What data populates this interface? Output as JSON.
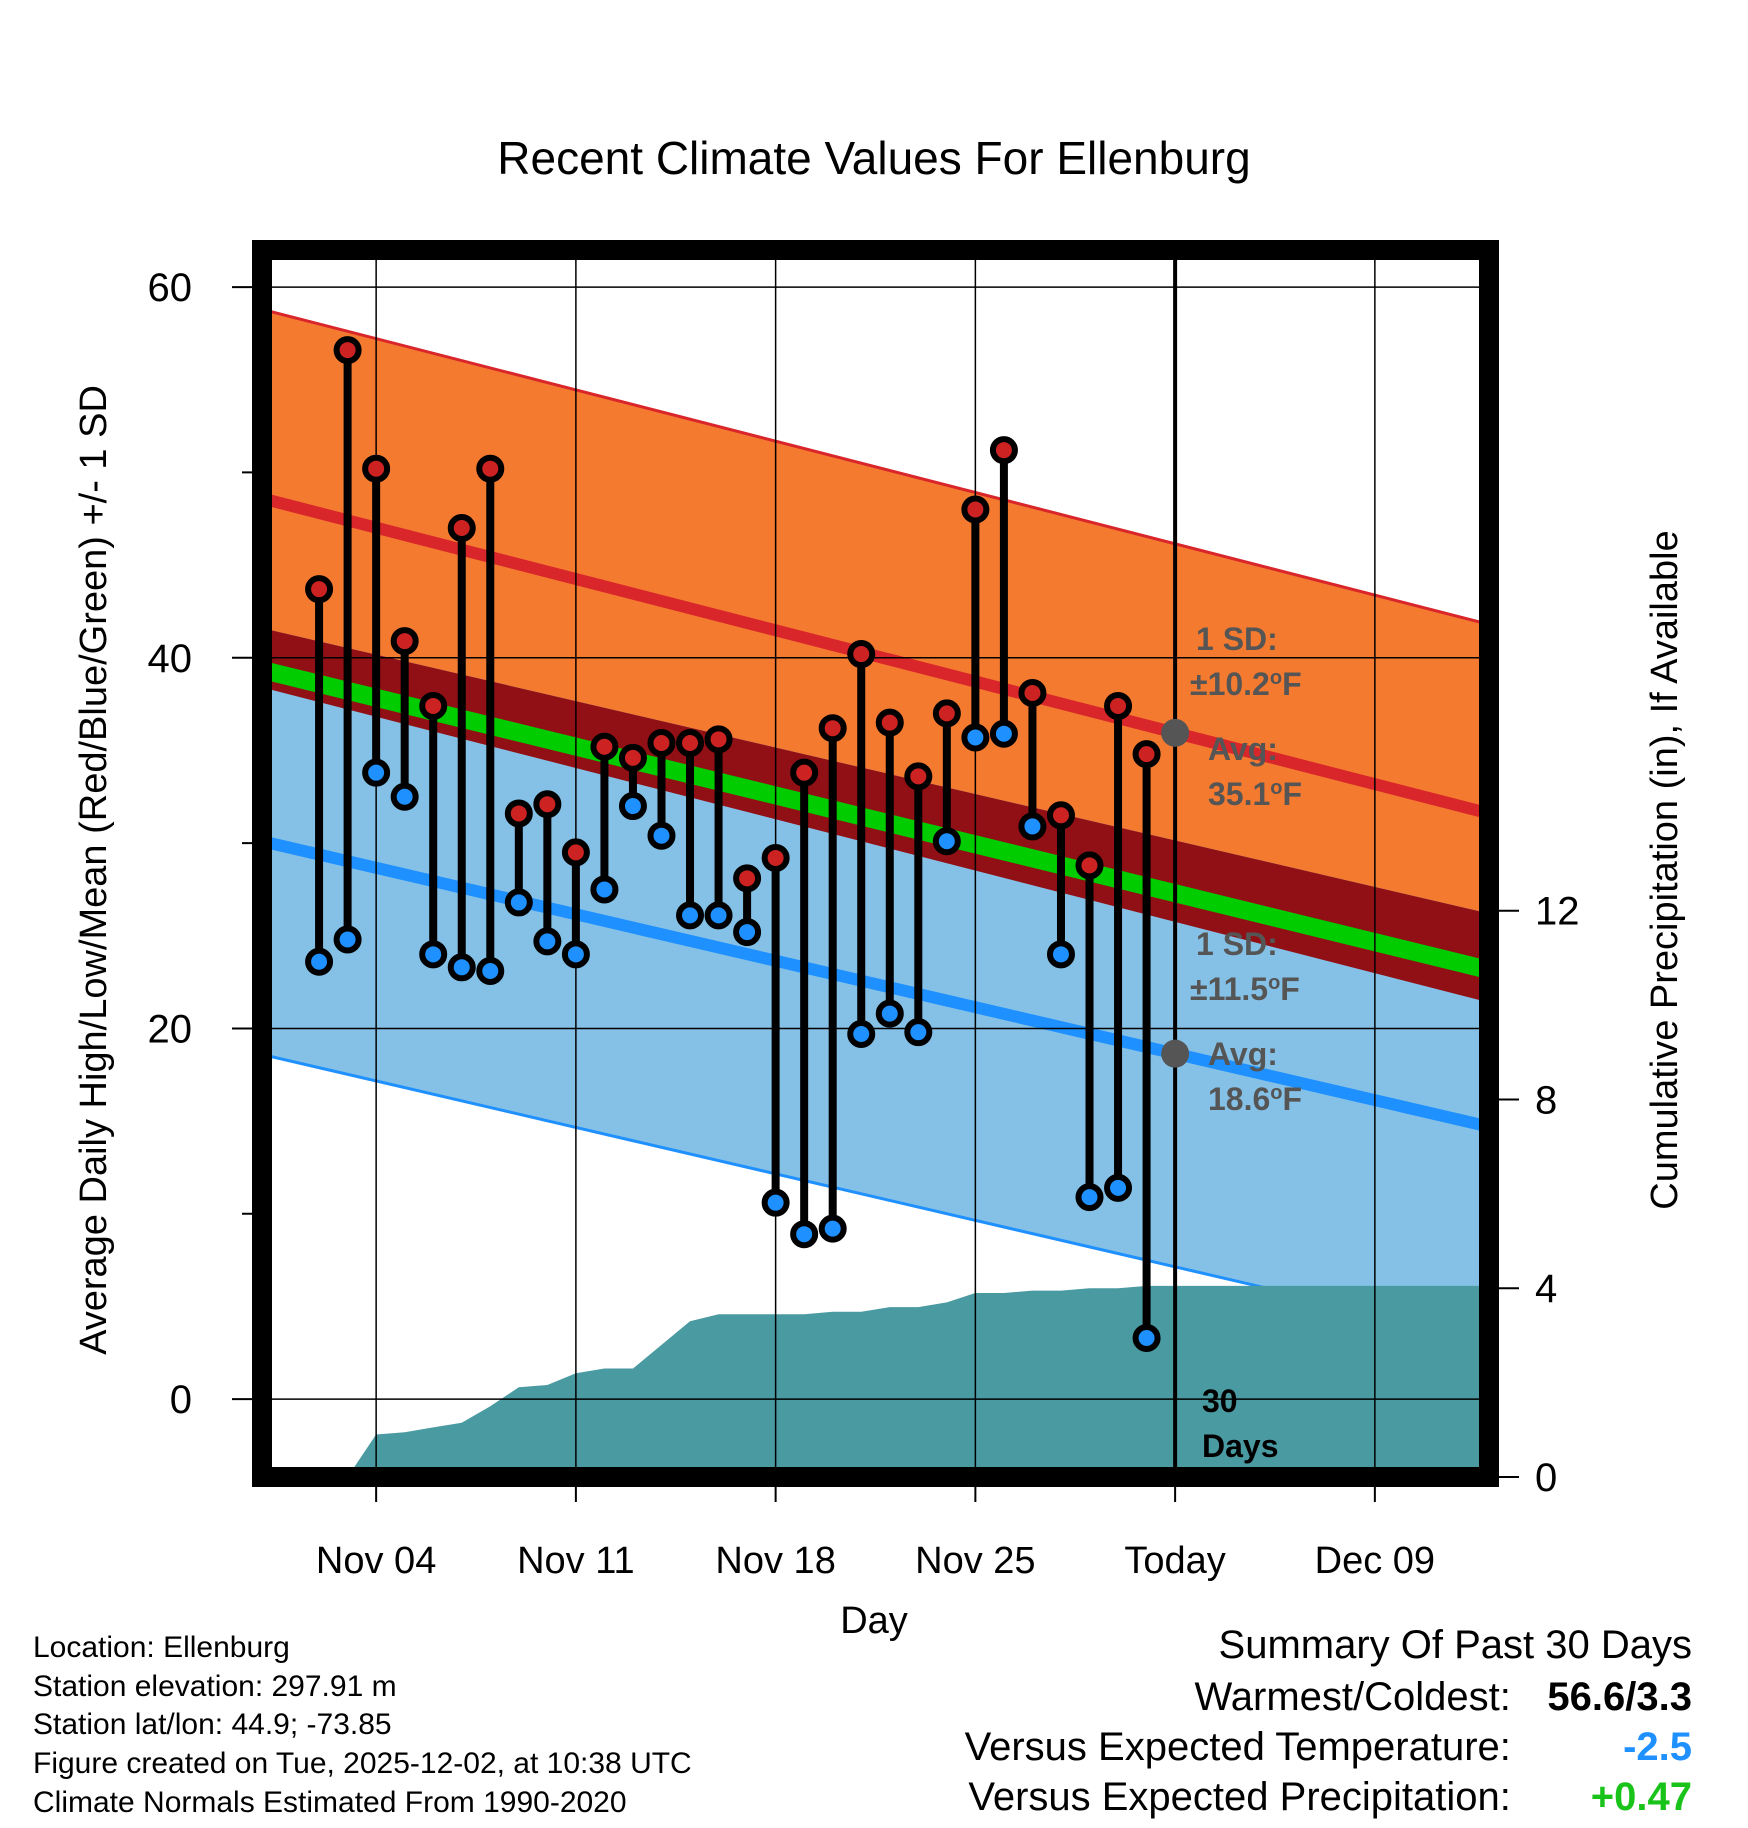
{
  "chart_data": {
    "type": "line",
    "title": "Recent Climate Values For Ellenburg",
    "xlabel": "Day",
    "ylabel": "Average Daily High/Low/Mean (Red/Blue/Green) +/- 1 SD",
    "y2label": "Cumulative Precipitation (in), If Available",
    "xlim": [
      -1,
      42
    ],
    "ylim": [
      -4.2,
      62
    ],
    "y2lim": [
      0,
      26
    ],
    "x_ticks": [
      {
        "day": 3,
        "label": "Nov 04"
      },
      {
        "day": 10,
        "label": "Nov 11"
      },
      {
        "day": 17,
        "label": "Nov 18"
      },
      {
        "day": 24,
        "label": "Nov 25"
      },
      {
        "day": 31,
        "label": "Today"
      },
      {
        "day": 38,
        "label": "Dec 09"
      }
    ],
    "y_ticks": [
      0,
      20,
      40,
      60
    ],
    "y_minor_ticks": [
      10,
      30,
      50
    ],
    "y2_ticks": [
      0,
      4,
      8,
      12
    ],
    "today_day": 31,
    "normals": {
      "x": [
        -1,
        42
      ],
      "high_mean": [
        48.6,
        31.6
      ],
      "high_sd": 10.2,
      "low_mean": [
        30.1,
        14.7
      ],
      "low_sd": 11.5
    },
    "days": [
      1,
      2,
      3,
      4,
      5,
      6,
      7,
      8,
      9,
      10,
      11,
      12,
      13,
      14,
      15,
      16,
      17,
      18,
      19,
      20,
      21,
      22,
      23,
      24,
      25,
      26,
      27,
      28,
      29,
      30
    ],
    "highs": [
      43.7,
      56.6,
      50.2,
      40.9,
      37.4,
      47.0,
      50.2,
      31.6,
      32.1,
      29.5,
      35.2,
      34.6,
      35.4,
      35.4,
      35.6,
      28.1,
      29.2,
      33.8,
      36.2,
      40.2,
      36.5,
      33.6,
      37.0,
      48.0,
      51.2,
      38.1,
      31.5,
      28.8,
      37.4,
      34.8
    ],
    "lows": [
      23.6,
      24.8,
      33.8,
      32.5,
      24.0,
      23.3,
      23.1,
      26.8,
      24.7,
      24.0,
      27.5,
      32.0,
      30.4,
      26.1,
      26.1,
      25.2,
      10.6,
      8.9,
      9.2,
      19.7,
      20.8,
      19.8,
      30.1,
      35.7,
      35.9,
      30.9,
      24.0,
      10.9,
      11.4,
      3.3
    ],
    "precip_cumulative": [
      0,
      0,
      0,
      0.9,
      0.95,
      1.05,
      1.15,
      1.5,
      1.9,
      1.95,
      2.2,
      2.3,
      2.3,
      2.8,
      3.3,
      3.45,
      3.45,
      3.45,
      3.45,
      3.5,
      3.5,
      3.6,
      3.6,
      3.7,
      3.9,
      3.9,
      3.95,
      3.95,
      4.0,
      4.0,
      4.05,
      4.05
    ],
    "annotations": {
      "high_sd_line1": "1 SD:",
      "high_sd_line2": "±10.2",
      "high_avg_line1": "Avg:",
      "high_avg_line2": "35.1",
      "low_sd_line1": "1 SD:",
      "low_sd_line2": "±11.5",
      "low_avg_line1": "Avg:",
      "low_avg_line2": "18.6",
      "degree_symbol": "o",
      "unit": "F",
      "window_line1": "30",
      "window_line2": "Days"
    },
    "colors": {
      "high_band": "#f47a30",
      "high_line": "#d9262a",
      "low_band": "#85c1e6",
      "low_line": "#1e90ff",
      "mean_line": "#00cc00",
      "overlap_band": "#911015",
      "precip": "#4a9aa1",
      "annotation": "#555555",
      "dot_high": "#cc2222",
      "dot_low": "#1e90ff",
      "avg_marker": "#555555"
    }
  },
  "footer": {
    "location": "Location: Ellenburg",
    "elevation": "Station elevation: 297.91 m",
    "latlon": "Station lat/lon: 44.9; -73.85",
    "created": "Figure created on Tue, 2025-12-02, at 10:38 UTC",
    "normals": "Climate Normals Estimated From 1990-2020"
  },
  "summary": {
    "title": "Summary Of Past 30 Days",
    "warmest_label": "Warmest/Coldest:",
    "warmest_value": "56.6/3.3",
    "temp_label": "Versus Expected Temperature:",
    "temp_value": "-2.5",
    "temp_color": "#1e90ff",
    "precip_label": "Versus Expected Precipitation:",
    "precip_value": "+0.47",
    "precip_color": "#19c319"
  }
}
